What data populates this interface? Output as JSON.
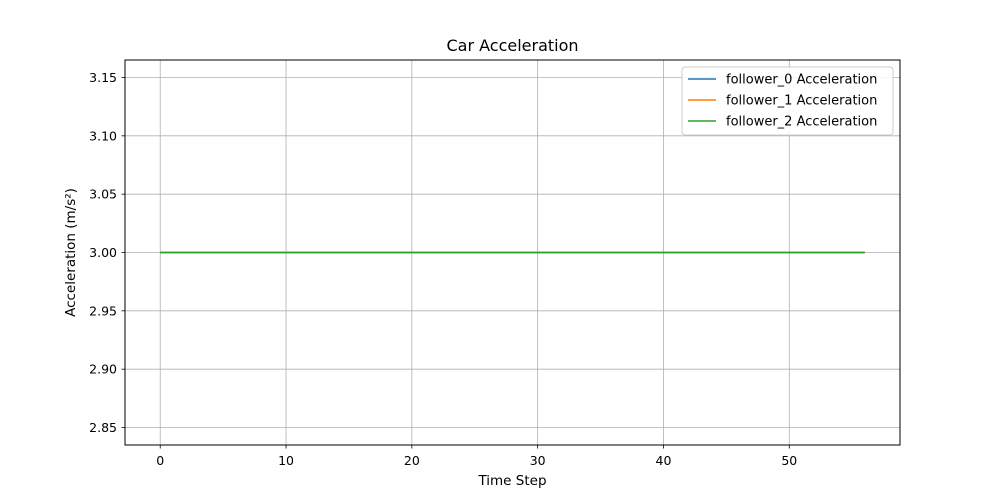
{
  "chart_data": {
    "type": "line",
    "title": "Car Acceleration",
    "xlabel": "Time Step",
    "ylabel": "Acceleration (m/s²)",
    "xlim": [
      -2.8,
      58.8
    ],
    "ylim": [
      2.835,
      3.165
    ],
    "xticks": [
      0,
      10,
      20,
      30,
      40,
      50
    ],
    "yticks": [
      2.85,
      2.9,
      2.95,
      3.0,
      3.05,
      3.1,
      3.15
    ],
    "ytick_labels": [
      "2.85",
      "2.90",
      "2.95",
      "3.00",
      "3.05",
      "3.10",
      "3.15"
    ],
    "grid": true,
    "legend_position": "top-right",
    "series": [
      {
        "name": "follower_0 Acceleration",
        "color": "#1f77b4",
        "x_range": [
          0,
          56
        ],
        "value": 3.0
      },
      {
        "name": "follower_1 Acceleration",
        "color": "#ff7f0e",
        "x_range": [
          0,
          56
        ],
        "value": 3.0
      },
      {
        "name": "follower_2 Acceleration",
        "color": "#2ca02c",
        "x_range": [
          0,
          56
        ],
        "value": 3.0
      }
    ]
  }
}
